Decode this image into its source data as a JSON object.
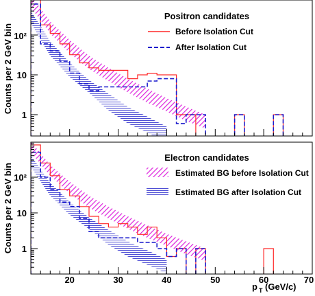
{
  "figure": {
    "xlabel": "p",
    "xlabel_sub": "T",
    "xlabel_unit": "(GeV/c)",
    "ylabel": "Counts per 2 GeV bin",
    "x_ticks": [
      "20",
      "30",
      "40",
      "50",
      "60",
      "70"
    ]
  },
  "chart_data": [
    {
      "type": "histogram",
      "title": "Positron candidates",
      "x_range": [
        12,
        70
      ],
      "y_scale": "log",
      "y_range": [
        0.5,
        1000
      ],
      "y_tick_labels": [
        "1",
        "10",
        "10²"
      ],
      "bin_edges": [
        12,
        14,
        16,
        18,
        20,
        22,
        24,
        26,
        28,
        30,
        32,
        34,
        36,
        38,
        40,
        42,
        44,
        46,
        48,
        50,
        52,
        54,
        56,
        58,
        60,
        62,
        64
      ],
      "series": [
        {
          "name": "Before Isolation Cut",
          "color": "#ff2a2a",
          "style": "solid",
          "values": [
            800,
            180,
            110,
            60,
            32,
            20,
            15,
            13,
            13,
            13,
            8,
            10,
            11,
            10,
            10,
            1,
            1,
            0,
            0,
            0,
            0,
            1,
            0,
            0,
            0,
            1
          ]
        },
        {
          "name": "After Isolation Cut",
          "color": "#1c1ccd",
          "style": "dashed",
          "values": [
            600,
            60,
            40,
            22,
            11,
            6,
            4,
            5,
            5,
            5,
            5,
            5,
            7,
            8,
            8,
            0.6,
            1,
            1,
            0,
            0,
            0,
            1,
            0,
            0,
            0,
            1
          ]
        }
      ],
      "bands": [
        {
          "name": "Estimated BG before Isolation Cut",
          "color": "#dd22dd",
          "x": [
            12,
            16,
            20,
            24,
            28,
            32,
            36,
            40,
            44,
            48
          ],
          "low": [
            500,
            110,
            35,
            14,
            7,
            3.6,
            2,
            1.2,
            0.7,
            0.45
          ],
          "high": [
            1000,
            220,
            75,
            30,
            15,
            8,
            4.5,
            2.6,
            1.6,
            1.0
          ]
        },
        {
          "name": "Estimated BG after Isolation Cut",
          "color": "#3a3ad0",
          "x": [
            12,
            16,
            20,
            24,
            28,
            32,
            36,
            40
          ],
          "low": [
            200,
            30,
            9,
            3.5,
            1.3,
            0.6,
            0.35,
            0.2
          ],
          "high": [
            400,
            70,
            20,
            7.5,
            3.3,
            1.6,
            0.9,
            0.5
          ]
        }
      ]
    },
    {
      "type": "histogram",
      "title": "Electron candidates",
      "x_range": [
        12,
        70
      ],
      "y_scale": "log",
      "y_range": [
        0.5,
        1000
      ],
      "y_tick_labels": [
        "1",
        "10",
        "10²"
      ],
      "bin_edges": [
        12,
        14,
        16,
        18,
        20,
        22,
        24,
        26,
        28,
        30,
        32,
        34,
        36,
        38,
        40,
        42,
        44,
        46,
        48,
        50,
        52,
        54,
        56,
        58,
        60,
        62
      ],
      "series": [
        {
          "name": "Before Isolation Cut",
          "color": "#ff2a2a",
          "style": "solid",
          "values": [
            800,
            250,
            110,
            45,
            30,
            15,
            8,
            5,
            4,
            5,
            4,
            2.5,
            4,
            2,
            0.6,
            1,
            0,
            1,
            0,
            0,
            0,
            0,
            0,
            0,
            1
          ]
        },
        {
          "name": "After Isolation Cut",
          "color": "#1c1ccd",
          "style": "dashed",
          "values": [
            500,
            100,
            45,
            20,
            15,
            7,
            3,
            2,
            2,
            2,
            2,
            1.5,
            1.5,
            1,
            0.6,
            1,
            0,
            1,
            0,
            0,
            0,
            0,
            0,
            0,
            0
          ]
        }
      ],
      "bands": [
        {
          "name": "Estimated BG before Isolation Cut",
          "color": "#dd22dd",
          "x": [
            12,
            16,
            20,
            24,
            28,
            32,
            36,
            40,
            44,
            48
          ],
          "low": [
            500,
            110,
            35,
            14,
            7,
            3.6,
            2,
            1.2,
            0.7,
            0.45
          ],
          "high": [
            1000,
            220,
            75,
            30,
            15,
            8,
            4.5,
            2.6,
            1.6,
            1.0
          ]
        },
        {
          "name": "Estimated BG after Isolation Cut",
          "color": "#3a3ad0",
          "x": [
            12,
            16,
            20,
            24,
            28,
            32,
            36,
            40
          ],
          "low": [
            200,
            30,
            9,
            3.5,
            1.3,
            0.6,
            0.35,
            0.2
          ],
          "high": [
            400,
            70,
            20,
            7.5,
            3.3,
            1.6,
            0.9,
            0.5
          ]
        }
      ]
    }
  ]
}
